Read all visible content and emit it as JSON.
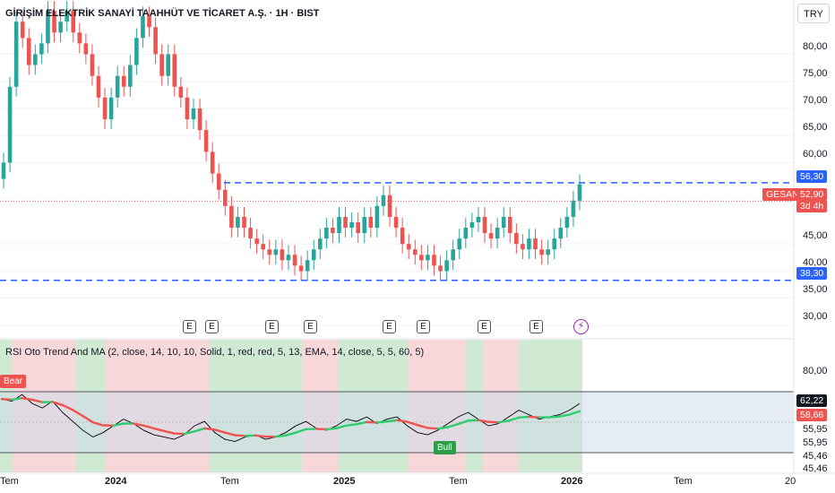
{
  "header": {
    "title": "GİRİŞİM ELEKTRİK SANAYİ TAAHHÜT VE TİCARET A.Ş. · 1H · BIST",
    "currency_button": "TRY"
  },
  "price_axis": {
    "labels": [
      "80,00",
      "75,00",
      "70,00",
      "65,00",
      "60,00",
      "45,00",
      "40,00",
      "35,00",
      "30,00"
    ],
    "resistance_tag": "56,30",
    "support_tag": "38,30",
    "symbol_tag": "GESAN",
    "last_price_tag": "52,90",
    "countdown_tag": "3d 4h"
  },
  "indicator": {
    "title": "RSI Oto Trend And MA (2, close, 14, 10, 10, Solid, 1, red, red, 5, 13, EMA, 14, close, 5, 5, 60, 5)",
    "labels": [
      "80,00",
      "55,95",
      "55,95",
      "45,46",
      "45,46"
    ],
    "rsi_tag": "62,22",
    "ma_tag": "58,66",
    "bear_label": "Bear",
    "bull_label": "Bull"
  },
  "time_axis": {
    "labels": [
      "Tem",
      "2024",
      "Tem",
      "2025",
      "Tem",
      "2026",
      "Tem",
      "20"
    ]
  },
  "events": {
    "badge": "E",
    "flash": "⚡"
  },
  "colors": {
    "up": "#26a69a",
    "down": "#ef5350",
    "level_line": "#2962ff",
    "bull_zone": "#cfe9d2",
    "bear_zone": "#f8d7da",
    "future_zone": "#cfdcea",
    "rsi": "#000000",
    "ma_up": "#2ecc71",
    "ma_down": "#ef5350"
  },
  "chart_data": {
    "type": "candlestick",
    "price": {
      "resistance": 56.3,
      "support": 38.3,
      "last": 52.9,
      "ylim": [
        28,
        90
      ]
    },
    "closes": [
      60,
      74,
      86,
      83,
      78,
      80,
      82,
      88,
      84,
      86,
      88,
      84,
      82,
      80,
      76,
      72,
      68,
      72,
      76,
      74,
      78,
      83,
      87,
      85,
      80,
      76,
      80,
      74,
      72,
      68,
      70,
      66,
      62,
      58,
      55,
      52,
      48,
      50,
      48,
      46,
      45,
      44,
      43,
      44,
      42,
      43,
      41,
      40,
      42,
      44,
      46,
      48,
      47,
      50,
      48,
      49,
      47,
      50,
      48,
      52,
      54,
      50,
      48,
      45,
      44,
      43,
      42,
      43,
      41,
      40,
      42,
      44,
      46,
      48,
      49,
      50,
      47,
      46,
      48,
      50,
      47,
      45,
      44,
      46,
      44,
      43,
      44,
      46,
      48,
      50,
      53,
      56
    ],
    "rsi": {
      "values": [
        64,
        63,
        66,
        62,
        60,
        63,
        58,
        54,
        50,
        47,
        49,
        52,
        55,
        53,
        50,
        48,
        47,
        46,
        48,
        52,
        54,
        49,
        46,
        45,
        47,
        48,
        46,
        47,
        49,
        52,
        54,
        51,
        50,
        52,
        55,
        54,
        56,
        53,
        55,
        56,
        52,
        49,
        48,
        50,
        53,
        56,
        58,
        55,
        52,
        53,
        56,
        59,
        57,
        55,
        56,
        57,
        59,
        62
      ],
      "ylim": [
        40,
        70
      ]
    },
    "zones": [
      {
        "state": "bull",
        "from": 0.0,
        "to": 0.02
      },
      {
        "state": "bear",
        "from": 0.02,
        "to": 0.13
      },
      {
        "state": "bull",
        "from": 0.13,
        "to": 0.18
      },
      {
        "state": "bear",
        "from": 0.18,
        "to": 0.36
      },
      {
        "state": "bull",
        "from": 0.36,
        "to": 0.52
      },
      {
        "state": "bear",
        "from": 0.52,
        "to": 0.58
      },
      {
        "state": "bull",
        "from": 0.58,
        "to": 0.7
      },
      {
        "state": "bear",
        "from": 0.7,
        "to": 0.8
      },
      {
        "state": "bull",
        "from": 0.8,
        "to": 0.83
      },
      {
        "state": "bear",
        "from": 0.83,
        "to": 0.89
      },
      {
        "state": "bull",
        "from": 0.89,
        "to": 1.0
      }
    ]
  }
}
